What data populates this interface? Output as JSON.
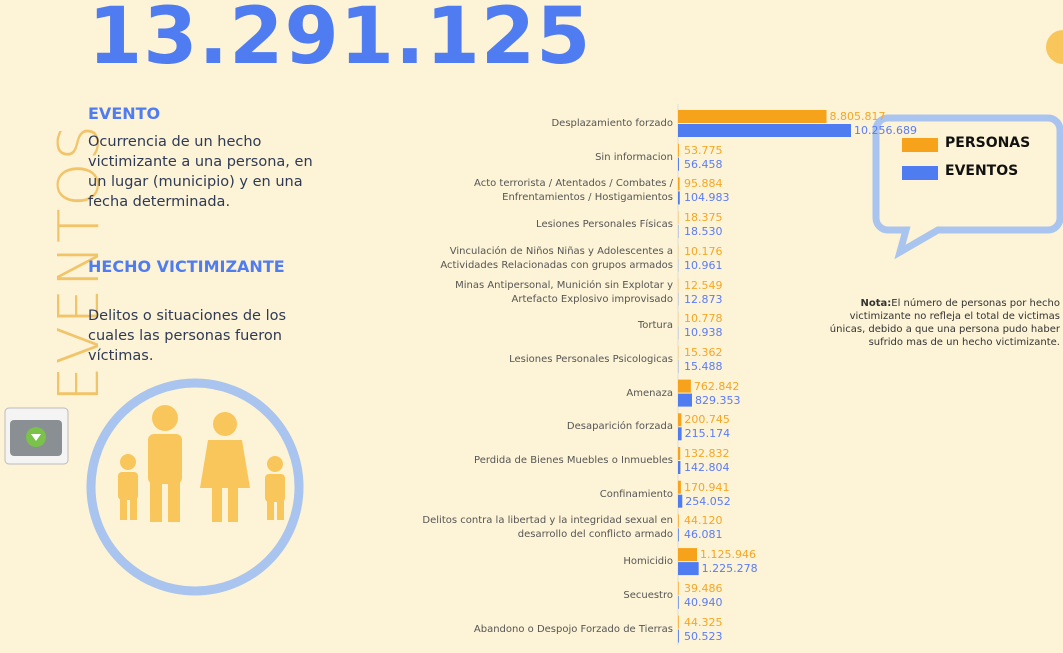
{
  "header": {
    "total": "13.291.125"
  },
  "sidebar": {
    "vertical_title": "EVENTOS",
    "sections": [
      {
        "heading": "EVENTO",
        "text": "Ocurrencia de un hecho victimizante a una persona, en un lugar (municipio) y en una fecha determinada."
      },
      {
        "heading": "HECHO VICTIMIZANTE",
        "text": "Delitos o situaciones de los cuales las personas fueron víctimas."
      }
    ]
  },
  "note": {
    "label": "Nota:",
    "text": "El número de personas por hecho victimizante no refleja el total de victimas únicas, debido a que una persona pudo haber sufrido mas de un hecho victimizante."
  },
  "chart_data": {
    "type": "bar",
    "orientation": "horizontal",
    "categories": [
      "Desplazamiento forzado",
      "Sin informacion",
      "Acto terrorista / Atentados / Combates /\nEnfrentamientos / Hostigamientos",
      "Lesiones Personales Físicas",
      "Vinculación de Niños Niñas y Adolescentes a\nActividades Relacionadas con grupos armados",
      "Minas Antipersonal, Munición sin Explotar y\nArtefacto Explosivo improvisado",
      "Tortura",
      "Lesiones Personales Psicologicas",
      "Amenaza",
      "Desaparición forzada",
      "Perdida de Bienes Muebles o Inmuebles",
      "Confinamiento",
      "Delitos contra la libertad y la integridad sexual en\ndesarrollo del conflicto armado",
      "Homicidio",
      "Secuestro",
      "Abandono o Despojo Forzado de Tierras"
    ],
    "series": [
      {
        "name": "PERSONAS",
        "color": "#f7a21b",
        "values": [
          8805817,
          53775,
          95884,
          18375,
          10176,
          12549,
          10778,
          15362,
          762842,
          200745,
          132832,
          170941,
          44120,
          1125946,
          39486,
          44325
        ],
        "value_labels": [
          "8.805.817",
          "53.775",
          "95.884",
          "18.375",
          "10.176",
          "12.549",
          "10.778",
          "15.362",
          "762.842",
          "200.745",
          "132.832",
          "170.941",
          "44.120",
          "1.125.946",
          "39.486",
          "44.325"
        ]
      },
      {
        "name": "EVENTOS",
        "color": "#4f7cf0",
        "values": [
          10256689,
          56458,
          104983,
          18530,
          10961,
          12873,
          10938,
          15488,
          829353,
          215174,
          142804,
          254052,
          46081,
          1225278,
          40940,
          50523
        ],
        "value_labels": [
          "10.256.689",
          "56.458",
          "104.983",
          "18.530",
          "10.961",
          "12.873",
          "10.938",
          "15.488",
          "829.353",
          "215.174",
          "142.804",
          "254.052",
          "46.081",
          "1.225.278",
          "40.940",
          "50.523"
        ]
      }
    ],
    "legend": "top-right"
  }
}
